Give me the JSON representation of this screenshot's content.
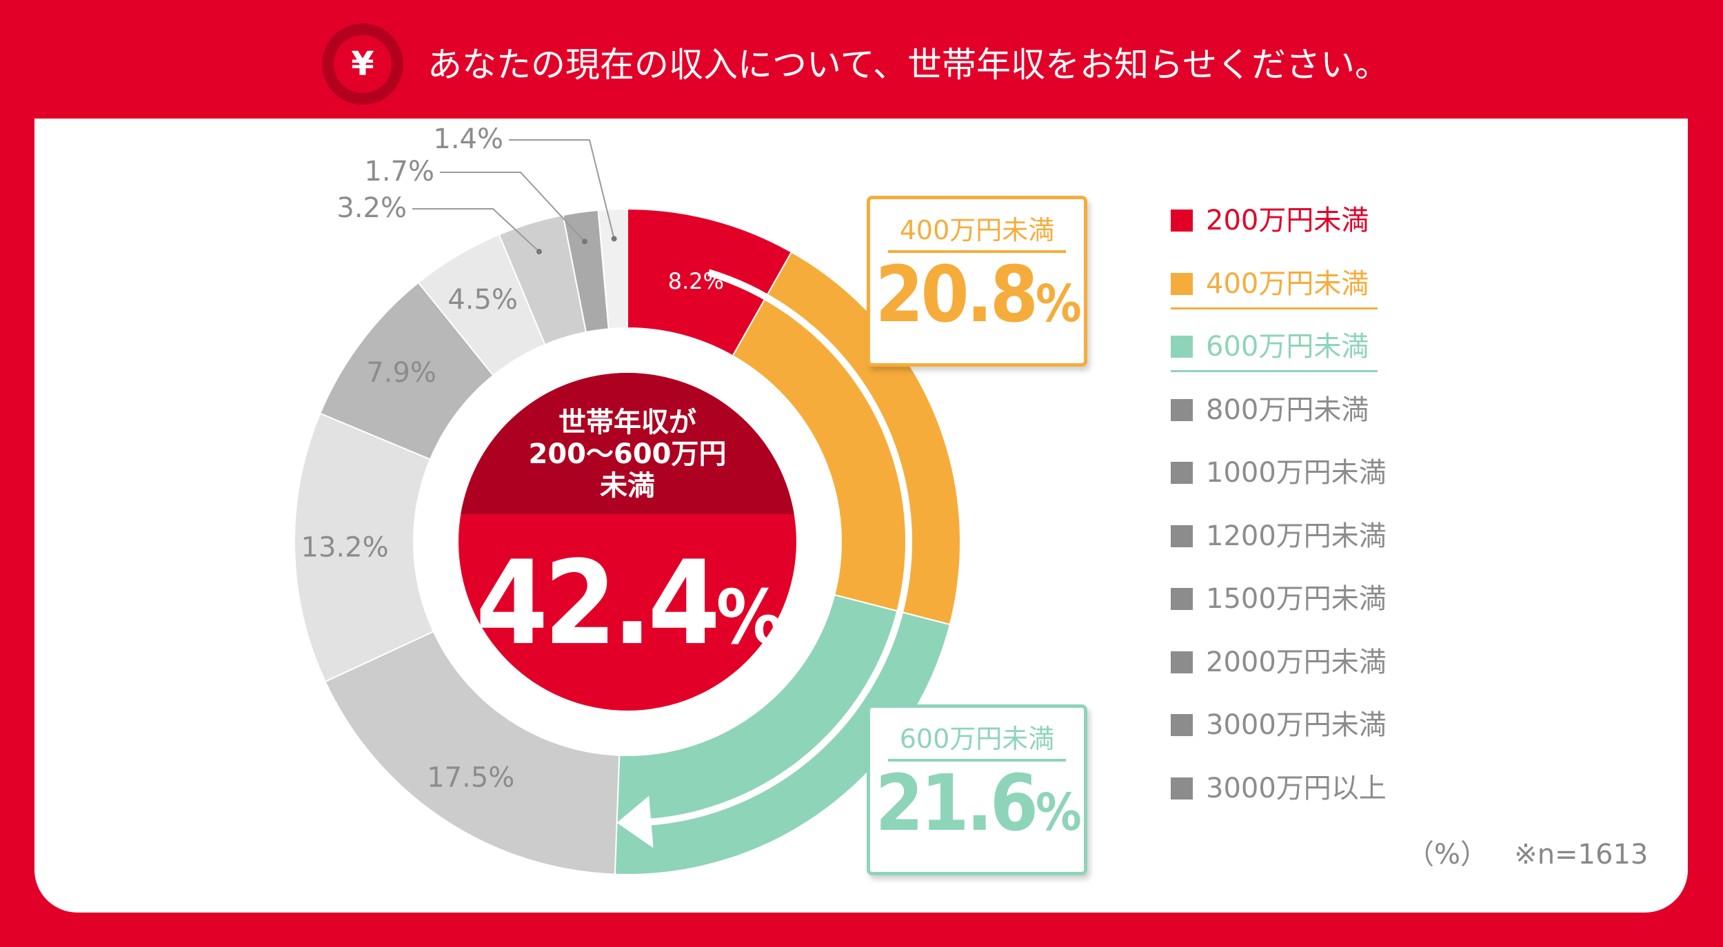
{
  "header": {
    "icon_symbol": "¥",
    "title": "あなたの現在の収入について、世帯年収をお知らせください。"
  },
  "chart_data": {
    "type": "pie",
    "variant": "donut",
    "title": "あなたの現在の収入について、世帯年収をお知らせください。",
    "categories": [
      "200万円未満",
      "400万円未満",
      "600万円未満",
      "800万円未満",
      "1000万円未満",
      "1200万円未満",
      "1500万円未満",
      "2000万円未満",
      "3000万円未満",
      "3000万円以上"
    ],
    "values": [
      8.2,
      20.8,
      21.6,
      17.5,
      13.2,
      7.9,
      4.5,
      3.2,
      1.7,
      1.4
    ],
    "value_labels": [
      "8.2%",
      "",
      "",
      "17.5%",
      "13.2%",
      "7.9%",
      "4.5%",
      "3.2%",
      "1.7%",
      "1.4%"
    ],
    "colors": [
      "#e30028",
      "#f6ac3b",
      "#8ed4b9",
      "#cccccc",
      "#e2e2e2",
      "#b8b8b8",
      "#e9e9e9",
      "#cfcfcf",
      "#a9a9a9",
      "#f0f0f0"
    ],
    "unit": "(%)",
    "sample_note": "※n=1613"
  },
  "center": {
    "heading_lines": [
      "世帯年収が",
      "200～600万円",
      "未満"
    ],
    "value_num": "42.4",
    "value_sym": "%",
    "color": "#e30028",
    "head_color": "#ae0020"
  },
  "callouts": [
    {
      "label": "400万円未満",
      "num": "20.8",
      "sym": "%",
      "color": "#f6ac3b"
    },
    {
      "label": "600万円未満",
      "num": "21.6",
      "sym": "%",
      "color": "#8ed4b9"
    }
  ],
  "legend": [
    {
      "label": "200万円未満",
      "color": "#e30028",
      "text_color": "#e30028",
      "underline": ""
    },
    {
      "label": "400万円未満",
      "color": "#f6ac3b",
      "text_color": "#f6ac3b",
      "underline": "#f6ac3b"
    },
    {
      "label": "600万円未満",
      "color": "#8ed4b9",
      "text_color": "#8ed4b9",
      "underline": "#8ed4b9"
    },
    {
      "label": "800万円未満",
      "color": "#8c8c8c",
      "text_color": "#8c8c8c",
      "underline": ""
    },
    {
      "label": "1000万円未満",
      "color": "#8c8c8c",
      "text_color": "#8c8c8c",
      "underline": ""
    },
    {
      "label": "1200万円未満",
      "color": "#8c8c8c",
      "text_color": "#8c8c8c",
      "underline": ""
    },
    {
      "label": "1500万円未満",
      "color": "#8c8c8c",
      "text_color": "#8c8c8c",
      "underline": ""
    },
    {
      "label": "2000万円未満",
      "color": "#8c8c8c",
      "text_color": "#8c8c8c",
      "underline": ""
    },
    {
      "label": "3000万円未満",
      "color": "#8c8c8c",
      "text_color": "#8c8c8c",
      "underline": ""
    },
    {
      "label": "3000万円以上",
      "color": "#8c8c8c",
      "text_color": "#8c8c8c",
      "underline": ""
    }
  ],
  "footer": {
    "unit": "（%）",
    "sample": "※n=1613"
  }
}
